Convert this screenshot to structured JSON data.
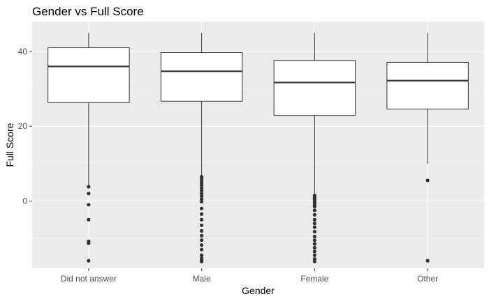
{
  "chart_data": {
    "type": "boxplot",
    "title": "Gender vs Full Score",
    "xlabel": "Gender",
    "ylabel": "Full Score",
    "ylim": [
      -18,
      48
    ],
    "yticks": [
      0,
      20,
      40
    ],
    "grid": true,
    "legend": "none",
    "categories": [
      "Did not answer",
      "Male",
      "Female",
      "Other"
    ],
    "boxes": [
      {
        "category": "Did not answer",
        "whisker_low": 4,
        "q1": 26.3,
        "median": 36,
        "q3": 41,
        "whisker_high": 45,
        "outliers": [
          3.8,
          2,
          -1,
          -5,
          -10.8,
          -11.3,
          -16
        ]
      },
      {
        "category": "Male",
        "whisker_low": 7,
        "q1": 26.7,
        "median": 34.7,
        "q3": 39.7,
        "whisker_high": 45,
        "outliers": [
          6.5,
          6,
          5.4,
          4.8,
          4.2,
          3.5,
          2.8,
          2,
          1.3,
          0.5,
          -0.2,
          -2,
          -3.5,
          -5,
          -6.5,
          -8,
          -9.3,
          -10.5,
          -11.8,
          -13,
          -14.5,
          -15.3,
          -15.8,
          -16.2
        ]
      },
      {
        "category": "Female",
        "whisker_low": 2,
        "q1": 22.9,
        "median": 31.7,
        "q3": 37.6,
        "whisker_high": 45,
        "outliers": [
          1.5,
          1,
          0.5,
          0,
          -0.5,
          -1,
          -1.5,
          -2.5,
          -3.7,
          -5,
          -6,
          -7,
          -8.2,
          -9.5,
          -10.5,
          -11.5,
          -12.5,
          -13.5,
          -14.5,
          -15.5,
          -16.2
        ]
      },
      {
        "category": "Other",
        "whisker_low": 10,
        "q1": 24.6,
        "median": 32.2,
        "q3": 37.1,
        "whisker_high": 45,
        "outliers": [
          5.5,
          -16
        ]
      }
    ]
  }
}
